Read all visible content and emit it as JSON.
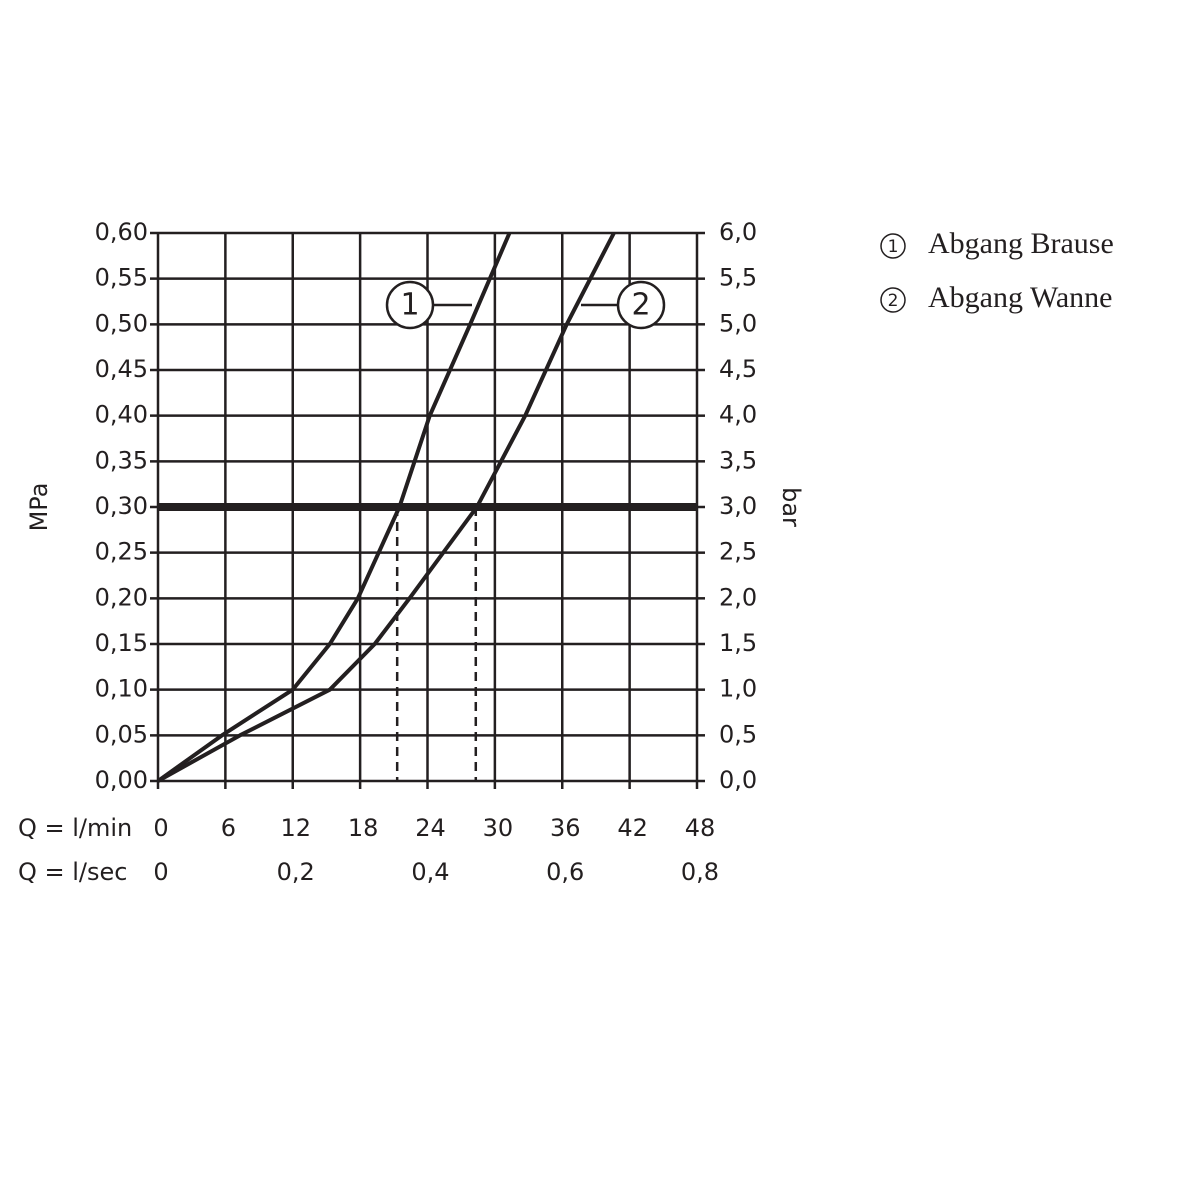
{
  "chart_data": {
    "type": "line",
    "y_label": "MPa",
    "y2_label": "bar",
    "x_label": "Q = l/min",
    "x2_label": "Q = l/sec",
    "xlim": [
      0,
      48
    ],
    "xticks": [
      0,
      6,
      12,
      18,
      24,
      30,
      36,
      42,
      48
    ],
    "x2lim": [
      0,
      0.8
    ],
    "x2ticks": [
      0,
      {
        "value": 0.2,
        "label": "0,2"
      },
      {
        "value": 0.4,
        "label": "0,4"
      },
      {
        "value": 0.6,
        "label": "0,6"
      },
      {
        "value": 0.8,
        "label": "0,8"
      }
    ],
    "ylim": [
      0,
      0.6
    ],
    "yticks": [
      {
        "value": 0,
        "label": "0,00"
      },
      {
        "value": 0.05,
        "label": "0,05"
      },
      {
        "value": 0.1,
        "label": "0,10"
      },
      {
        "value": 0.15,
        "label": "0,15"
      },
      {
        "value": 0.2,
        "label": "0,20"
      },
      {
        "value": 0.25,
        "label": "0,25"
      },
      {
        "value": 0.3,
        "label": "0,30"
      },
      {
        "value": 0.35,
        "label": "0,35"
      },
      {
        "value": 0.4,
        "label": "0,40"
      },
      {
        "value": 0.45,
        "label": "0,45"
      },
      {
        "value": 0.5,
        "label": "0,50"
      },
      {
        "value": 0.55,
        "label": "0,55"
      },
      {
        "value": 0.6,
        "label": "0,60"
      }
    ],
    "y2lim": [
      0,
      6
    ],
    "y2ticks": [
      {
        "value": 0,
        "label": "0,0"
      },
      {
        "value": 0.5,
        "label": "0,5"
      },
      {
        "value": 1,
        "label": "1,0"
      },
      {
        "value": 1.5,
        "label": "1,5"
      },
      {
        "value": 2,
        "label": "2,0"
      },
      {
        "value": 2.5,
        "label": "2,5"
      },
      {
        "value": 3,
        "label": "3,0"
      },
      {
        "value": 3.5,
        "label": "3,5"
      },
      {
        "value": 4,
        "label": "4,0"
      },
      {
        "value": 4.5,
        "label": "4,5"
      },
      {
        "value": 5,
        "label": "5,0"
      },
      {
        "value": 5.5,
        "label": "5,5"
      },
      {
        "value": 6,
        "label": "6,0"
      }
    ],
    "grid": true,
    "highlight_y": 0.3,
    "reference_x": [
      21.3,
      28.3
    ],
    "series": [
      {
        "name": "Abgang Brause",
        "label": "1",
        "color": "#231f20",
        "x": [
          0,
          5.7,
          12,
          15.3,
          17.8,
          21.5,
          24.2,
          27.8,
          31.3
        ],
        "values": [
          0,
          0.05,
          0.1,
          0.15,
          0.2,
          0.3,
          0.4,
          0.5,
          0.6
        ]
      },
      {
        "name": "Abgang Wanne",
        "label": "2",
        "color": "#231f20",
        "x": [
          0,
          7.3,
          15.3,
          19.3,
          22.4,
          28.4,
          32.7,
          36.4,
          40.6
        ],
        "values": [
          0,
          0.05,
          0.1,
          0.15,
          0.2,
          0.3,
          0.4,
          0.5,
          0.6
        ]
      }
    ]
  }
}
